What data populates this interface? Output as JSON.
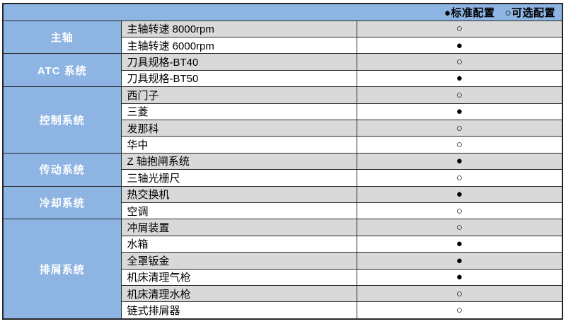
{
  "colors": {
    "header_bg": "#8DB4E2",
    "category_bg": "#8DB4E2",
    "row_bg": "#FFFFFF",
    "row_alt_bg": "#D9D9D9",
    "border": "#262626",
    "category_text": "#FFFFFF",
    "text": "#000000"
  },
  "legend": {
    "standard_symbol": "●",
    "standard_label": "标准配置",
    "optional_symbol": "○",
    "optional_label": "可选配置"
  },
  "table": {
    "categories": [
      {
        "name": "主轴",
        "items": [
          {
            "label": "主轴转速 8000rpm",
            "config": "optional"
          },
          {
            "label": "主轴转速 6000rpm",
            "config": "standard"
          }
        ]
      },
      {
        "name": "ATC 系统",
        "items": [
          {
            "label": "刀具规格-BT40",
            "config": "optional"
          },
          {
            "label": "刀具规格-BT50",
            "config": "standard"
          }
        ]
      },
      {
        "name": "控制系统",
        "items": [
          {
            "label": "西门子",
            "config": "optional"
          },
          {
            "label": "三菱",
            "config": "standard"
          },
          {
            "label": "发那科",
            "config": "optional"
          },
          {
            "label": "华中",
            "config": "optional"
          }
        ]
      },
      {
        "name": "传动系统",
        "items": [
          {
            "label": "Z 轴抱闸系统",
            "config": "standard"
          },
          {
            "label": "三轴光栅尺",
            "config": "optional"
          }
        ]
      },
      {
        "name": "冷却系统",
        "items": [
          {
            "label": "热交换机",
            "config": "standard"
          },
          {
            "label": "空调",
            "config": "optional"
          }
        ]
      },
      {
        "name": "排屑系统",
        "items": [
          {
            "label": "冲屑装置",
            "config": "optional"
          },
          {
            "label": "水箱",
            "config": "standard"
          },
          {
            "label": "全罩钣金",
            "config": "standard"
          },
          {
            "label": "机床清理气枪",
            "config": "standard"
          },
          {
            "label": "机床清理水枪",
            "config": "optional"
          },
          {
            "label": "链式排屑器",
            "config": "optional"
          }
        ]
      }
    ]
  }
}
